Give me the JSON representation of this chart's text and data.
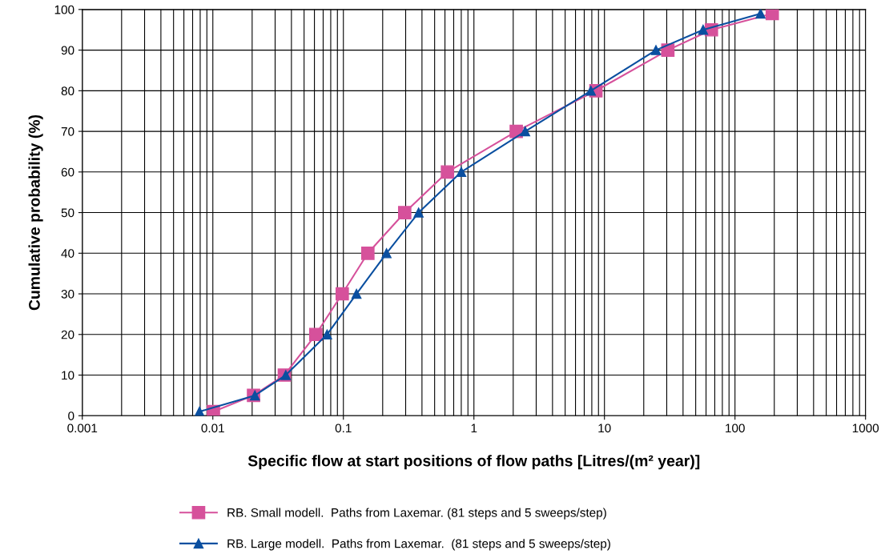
{
  "chart_data": {
    "type": "line",
    "xlabel": "Specific flow at start positions of flow paths [Litres/(m² year)]",
    "ylabel": "Cumulative probability (%)",
    "log": "x",
    "xlim": [
      0.001,
      1000
    ],
    "xticks": [
      0.001,
      0.01,
      0.1,
      1,
      10,
      100,
      1000
    ],
    "ylim": [
      0,
      100
    ],
    "yticks": [
      0,
      10,
      20,
      30,
      40,
      50,
      60,
      70,
      80,
      90,
      100
    ],
    "grid": true,
    "legend": "bottom",
    "line_style": "solid",
    "series": [
      {
        "name": "RB. Small modell.  Paths from Laxemar. (81 steps and 5 sweeps/step)",
        "color": "#d6519b",
        "marker": "square",
        "x": [
          0.0101,
          0.0205,
          0.0353,
          0.0615,
          0.098,
          0.154,
          0.295,
          0.627,
          2.11,
          8.6,
          30.6,
          66,
          193
        ],
        "values": [
          1,
          5,
          10,
          20,
          30,
          40,
          50,
          60,
          70,
          80,
          90,
          95,
          99
        ]
      },
      {
        "name": "RB. Large modell.  Paths from Laxemar.  (81 steps and 5 sweeps/step)",
        "color": "#0a4fa0",
        "marker": "triangle",
        "x": [
          0.0079,
          0.021,
          0.0362,
          0.075,
          0.126,
          0.214,
          0.377,
          0.8,
          2.47,
          7.87,
          24.8,
          57,
          157
        ],
        "values": [
          1,
          5,
          10,
          20,
          30,
          40,
          50,
          60,
          70,
          80,
          90,
          95,
          99
        ]
      }
    ]
  }
}
